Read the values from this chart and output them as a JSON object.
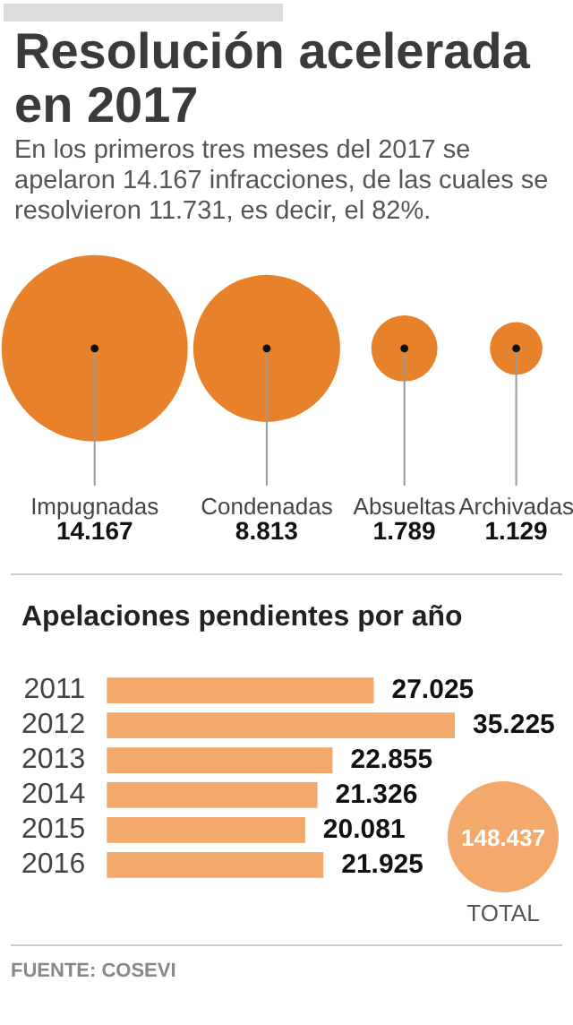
{
  "chart_data": [
    {
      "type": "other",
      "title": "Resolución acelerada en 2017",
      "subtitle": "En los primeros tres meses del 2017 se apelaron 14.167 infracciones, de las cuales se resolvieron 11.731, es decir, el 82%.",
      "categories": [
        "Impugnadas",
        "Condenadas",
        "Absueltas",
        "Archivadas"
      ],
      "values": [
        14167,
        8813,
        1789,
        1129
      ],
      "value_labels": [
        "14.167",
        "8.813",
        "1.789",
        "1.129"
      ],
      "color": "#e8822a"
    },
    {
      "type": "bar",
      "orientation": "horizontal",
      "title": "Apelaciones pendientes por año",
      "categories": [
        "2011",
        "2012",
        "2013",
        "2014",
        "2015",
        "2016"
      ],
      "values": [
        27025,
        35225,
        22855,
        21326,
        20081,
        21925
      ],
      "color": "#f2a96b",
      "value_labels": [
        "27.025",
        "35.225",
        "22.855",
        "21.326",
        "20.081",
        "21.925"
      ],
      "annotations": [
        "148.437",
        "TOTAL",
        "FUENTE: COSEVI"
      ]
    }
  ]
}
